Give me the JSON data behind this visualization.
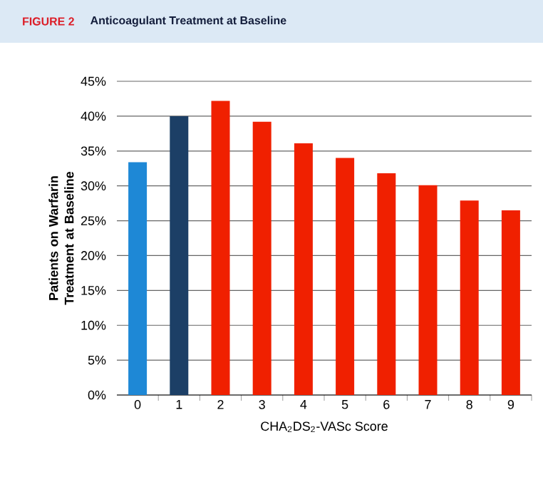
{
  "chart_data": {
    "type": "bar",
    "title": "FIGURE 2",
    "subtitle": "Anticoagulant Treatment at Baseline",
    "xlabel": "CHA$_{2}$DS$_{2}$-VASc Score",
    "ylabel": "Patients on Warfarin Treatment at Baseline",
    "categories": [
      "0",
      "1",
      "2",
      "3",
      "4",
      "5",
      "6",
      "7",
      "8",
      "9"
    ],
    "values": [
      33.4,
      40.0,
      42.2,
      39.2,
      36.1,
      34.0,
      31.8,
      30.1,
      27.9,
      26.5
    ],
    "colors": [
      "#1e88d6",
      "#1c3f66",
      "#f02000",
      "#f02000",
      "#f02000",
      "#f02000",
      "#f02000",
      "#f02000",
      "#f02000",
      "#f02000"
    ],
    "ylim": [
      0,
      45
    ],
    "yticks": [
      {
        "value": 0,
        "label": "0%"
      },
      {
        "value": 5,
        "label": "5%"
      },
      {
        "value": 10,
        "label": "10%"
      },
      {
        "value": 15,
        "label": "15%"
      },
      {
        "value": 20,
        "label": "20%"
      },
      {
        "value": 25,
        "label": "25%"
      },
      {
        "value": 30,
        "label": "30%"
      },
      {
        "value": 35,
        "label": "35%"
      },
      {
        "value": 40,
        "label": "40%"
      },
      {
        "value": 45,
        "label": "45%"
      }
    ],
    "grid": "y"
  }
}
